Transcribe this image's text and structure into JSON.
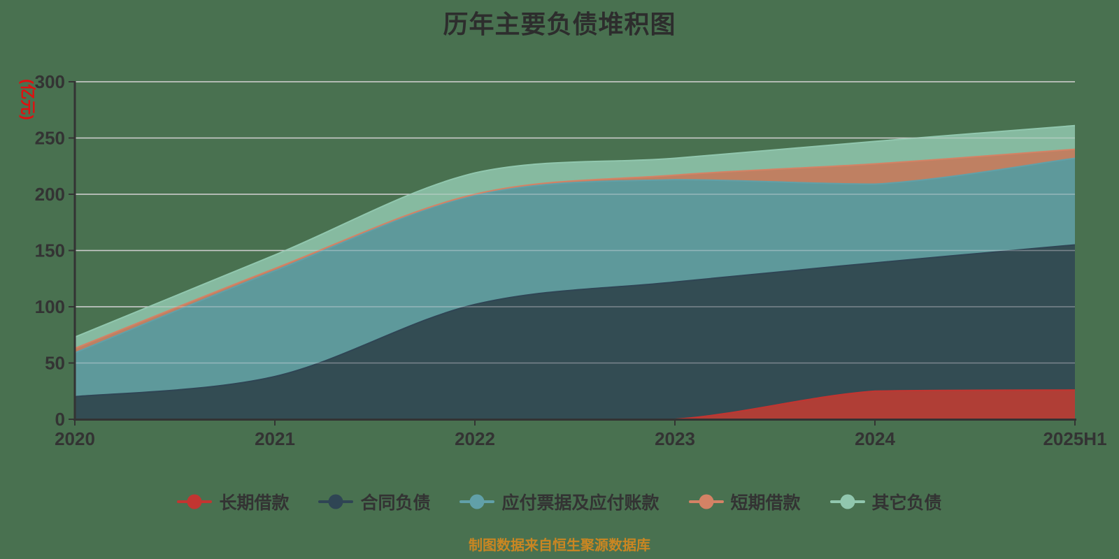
{
  "chart_data": {
    "type": "area",
    "stacked": true,
    "smooth": true,
    "title": "历年主要负债堆积图",
    "ylabel": "(亿元)",
    "source_note": "制图数据来自恒生聚源数据库",
    "categories": [
      "2020",
      "2021",
      "2022",
      "2023",
      "2024",
      "2025H1"
    ],
    "series": [
      {
        "id": "long-term-loans",
        "name": "长期借款",
        "color": "#c23531",
        "values": [
          0,
          0,
          0,
          0,
          25,
          26
        ]
      },
      {
        "id": "contract-liabilities",
        "name": "合同负债",
        "color": "#2f4554",
        "values": [
          20,
          38,
          102,
          122,
          114,
          129
        ]
      },
      {
        "id": "notes-and-accounts-payable",
        "name": "应付票据及应付账款",
        "color": "#61a0a8",
        "values": [
          39,
          94,
          97,
          91,
          70,
          77
        ]
      },
      {
        "id": "short-term-loans",
        "name": "短期借款",
        "color": "#d48265",
        "values": [
          4,
          2,
          1,
          4,
          18,
          8
        ]
      },
      {
        "id": "other-liabilities",
        "name": "其它负债",
        "color": "#91c7ae",
        "values": [
          10,
          12,
          19,
          15,
          20,
          21
        ]
      }
    ],
    "ylim": [
      0,
      300
    ],
    "y_tick_step": 50,
    "grid": true,
    "legend_position": "bottom"
  },
  "style": {
    "background_color": "#497150",
    "grid_color": "#cccccc",
    "axis_color": "#333333",
    "tick_text_color": "#333333",
    "title_color": "#2d2d2d",
    "ylabel_color": "#e01010",
    "source_note_color": "#ca8622",
    "area_opacity": 0.85
  }
}
